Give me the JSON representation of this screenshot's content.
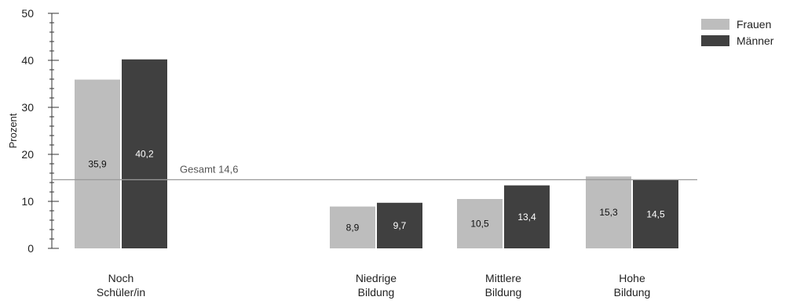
{
  "chart_data": {
    "type": "bar",
    "ylabel": "Prozent",
    "xlabel": "",
    "ylim": [
      0,
      50
    ],
    "yticks": [
      0,
      10,
      20,
      30,
      40,
      50
    ],
    "grid": false,
    "legend_position": "top-right",
    "categories": [
      [
        "Noch",
        "Schüler/in"
      ],
      [
        "Niedrige",
        "Bildung"
      ],
      [
        "Mittlere",
        "Bildung"
      ],
      [
        "Hohe",
        "Bildung"
      ]
    ],
    "series": [
      {
        "name": "Frauen",
        "color": "#bdbdbd",
        "values": [
          35.9,
          8.9,
          10.5,
          15.3
        ],
        "labels": [
          "35,9",
          "8,9",
          "10,5",
          "15,3"
        ]
      },
      {
        "name": "Männer",
        "color": "#404040",
        "values": [
          40.2,
          9.7,
          13.4,
          14.5
        ],
        "labels": [
          "40,2",
          "9,7",
          "13,4",
          "14,5"
        ]
      }
    ],
    "reference_line": {
      "value": 14.6,
      "label": "Gesamt 14,6",
      "color": "#999999"
    }
  }
}
